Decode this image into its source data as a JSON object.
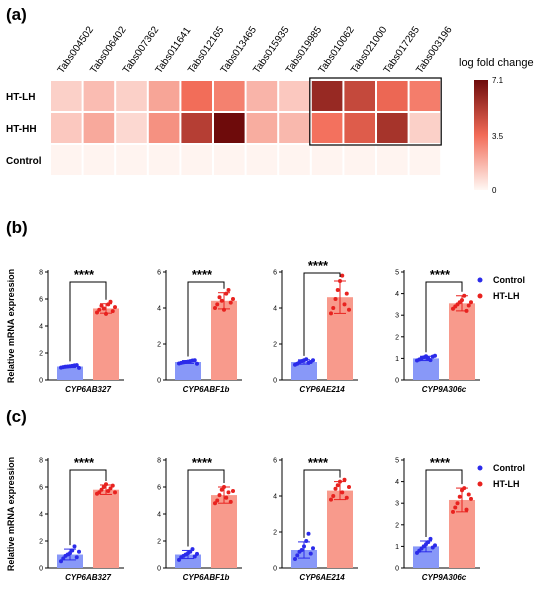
{
  "panel_labels": [
    "(a)",
    "(b)",
    "(c)"
  ],
  "colors": {
    "control_bar": "#8898f8",
    "control_dot": "#2b2bea",
    "htlh_bar": "#f89a8c",
    "htlh_dot": "#e8221f",
    "heat_low": "#fff8f4",
    "heat_mid": "#f26b57",
    "heat_high": "#6e0b0b"
  },
  "chart_data": [
    {
      "id": "a",
      "type": "heatmap",
      "columns": [
        "Tabs004502",
        "Tabs006402",
        "Tabs007362",
        "Tabs011641",
        "Tabs012165",
        "Tabs013465",
        "Tabs015935",
        "Tabs019985",
        "Tabs010062",
        "Tabs021000",
        "Tabs017285",
        "Tabs003196"
      ],
      "rows": [
        "HT-LH",
        "HT-HH",
        "Control"
      ],
      "values": [
        [
          1.0,
          1.5,
          1.0,
          2.1,
          3.5,
          3.0,
          1.7,
          1.2,
          6.0,
          4.8,
          3.7,
          3.1
        ],
        [
          1.2,
          2.0,
          0.8,
          2.6,
          5.2,
          7.1,
          1.9,
          1.6,
          3.4,
          4.1,
          5.6,
          1.0
        ],
        [
          0.1,
          0.1,
          0.1,
          0.1,
          0.1,
          0.1,
          0.1,
          0.1,
          0.1,
          0.1,
          0.1,
          0.1
        ]
      ],
      "colorbar": {
        "title": "log fold change",
        "min": 0,
        "max": 7.1,
        "ticks": [
          "0",
          "3.5",
          "7.1"
        ]
      },
      "highlight_columns": [
        8,
        11
      ]
    },
    {
      "id": "b",
      "type": "bar",
      "ylabel": "Relative mRNA expression",
      "legend": [
        "Control",
        "HT-LH"
      ],
      "legend_position": "top-right",
      "subplots": [
        {
          "category": "CYP6AB327",
          "ylim": [
            0,
            8
          ],
          "yticks": [
            "0",
            "2",
            "4",
            "6",
            "8"
          ],
          "significance": "****",
          "series": [
            {
              "name": "Control",
              "mean": 1.0,
              "sd": 0.08,
              "points": [
                0.92,
                0.95,
                0.98,
                1.0,
                1.02,
                1.05,
                1.08,
                1.1,
                0.9
              ]
            },
            {
              "name": "HT-LH",
              "mean": 5.3,
              "sd": 0.35,
              "points": [
                5.0,
                5.2,
                5.5,
                5.3,
                4.9,
                5.6,
                5.8,
                5.1,
                5.4
              ]
            }
          ]
        },
        {
          "category": "CYP6ABF1b",
          "ylim": [
            0,
            6
          ],
          "yticks": [
            "0",
            "2",
            "4",
            "6"
          ],
          "significance": "****",
          "series": [
            {
              "name": "Control",
              "mean": 1.0,
              "sd": 0.08,
              "points": [
                0.92,
                0.95,
                0.98,
                1.0,
                1.02,
                1.05,
                1.08,
                1.1,
                0.9
              ]
            },
            {
              "name": "HT-LH",
              "mean": 4.4,
              "sd": 0.45,
              "points": [
                4.0,
                4.2,
                4.6,
                4.4,
                3.9,
                4.8,
                5.0,
                4.3,
                4.5
              ]
            }
          ]
        },
        {
          "category": "CYP6AE214",
          "ylim": [
            0,
            6
          ],
          "yticks": [
            "0",
            "2",
            "4",
            "6"
          ],
          "significance": "****",
          "series": [
            {
              "name": "Control",
              "mean": 1.0,
              "sd": 0.12,
              "points": [
                0.85,
                0.9,
                1.0,
                1.05,
                1.1,
                1.15,
                0.95,
                1.0,
                1.1
              ]
            },
            {
              "name": "HT-LH",
              "mean": 4.6,
              "sd": 0.9,
              "points": [
                3.7,
                4.0,
                4.5,
                5.0,
                5.5,
                5.8,
                4.2,
                4.8,
                3.9
              ]
            }
          ]
        },
        {
          "category": "CYP9A306c",
          "ylim": [
            0,
            5
          ],
          "yticks": [
            "0",
            "1",
            "2",
            "3",
            "4",
            "5"
          ],
          "significance": "****",
          "series": [
            {
              "name": "Control",
              "mean": 1.0,
              "sd": 0.1,
              "points": [
                0.9,
                0.95,
                1.0,
                1.05,
                1.1,
                1.0,
                0.92,
                1.08,
                1.12
              ]
            },
            {
              "name": "HT-LH",
              "mean": 3.55,
              "sd": 0.35,
              "points": [
                3.3,
                3.4,
                3.5,
                3.6,
                3.7,
                3.9,
                3.2,
                3.45,
                3.6
              ]
            }
          ]
        }
      ]
    },
    {
      "id": "c",
      "type": "bar",
      "ylabel": "Relative mRNA expression",
      "legend": [
        "Control",
        "HT-LH"
      ],
      "legend_position": "top-right",
      "subplots": [
        {
          "category": "CYP6AB327",
          "ylim": [
            0,
            8
          ],
          "yticks": [
            "0",
            "2",
            "4",
            "6",
            "8"
          ],
          "significance": "****",
          "series": [
            {
              "name": "Control",
              "mean": 1.0,
              "sd": 0.4,
              "points": [
                0.5,
                0.7,
                0.9,
                1.0,
                1.1,
                1.3,
                1.6,
                0.8,
                1.2
              ]
            },
            {
              "name": "HT-LH",
              "mean": 5.8,
              "sd": 0.35,
              "points": [
                5.5,
                5.6,
                5.8,
                6.0,
                6.2,
                5.7,
                5.9,
                6.1,
                5.6
              ]
            }
          ]
        },
        {
          "category": "CYP6ABF1b",
          "ylim": [
            0,
            8
          ],
          "yticks": [
            "0",
            "2",
            "4",
            "6",
            "8"
          ],
          "significance": "****",
          "series": [
            {
              "name": "Control",
              "mean": 1.0,
              "sd": 0.3,
              "points": [
                0.6,
                0.8,
                0.9,
                1.0,
                1.1,
                1.2,
                1.4,
                0.85,
                1.05
              ]
            },
            {
              "name": "HT-LH",
              "mean": 5.4,
              "sd": 0.6,
              "points": [
                4.8,
                5.0,
                5.4,
                5.8,
                6.0,
                5.2,
                5.6,
                4.9,
                5.7
              ]
            }
          ]
        },
        {
          "category": "CYP6AE214",
          "ylim": [
            0,
            6
          ],
          "yticks": [
            "0",
            "2",
            "4",
            "6"
          ],
          "significance": "****",
          "series": [
            {
              "name": "Control",
              "mean": 1.0,
              "sd": 0.45,
              "points": [
                0.5,
                0.7,
                0.9,
                1.0,
                1.2,
                1.5,
                1.9,
                0.8,
                1.1
              ]
            },
            {
              "name": "HT-LH",
              "mean": 4.3,
              "sd": 0.5,
              "points": [
                3.8,
                4.0,
                4.4,
                4.6,
                4.8,
                4.2,
                4.9,
                3.9,
                4.5
              ]
            }
          ]
        },
        {
          "category": "CYP9A306c",
          "ylim": [
            0,
            5
          ],
          "yticks": [
            "0",
            "1",
            "2",
            "3",
            "4",
            "5"
          ],
          "significance": "****",
          "series": [
            {
              "name": "Control",
              "mean": 1.0,
              "sd": 0.25,
              "points": [
                0.7,
                0.8,
                0.9,
                1.0,
                1.1,
                1.2,
                1.35,
                0.95,
                1.05
              ]
            },
            {
              "name": "HT-LH",
              "mean": 3.15,
              "sd": 0.55,
              "points": [
                2.6,
                2.8,
                3.0,
                3.3,
                3.6,
                3.7,
                2.7,
                3.4,
                3.2
              ]
            }
          ]
        }
      ]
    }
  ]
}
